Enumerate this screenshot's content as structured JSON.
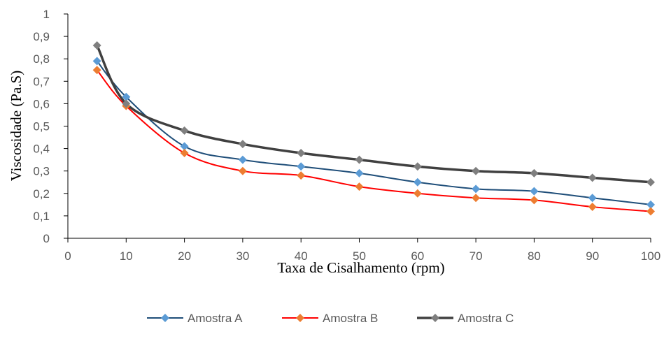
{
  "chart_data": {
    "type": "line",
    "title": "",
    "xlabel": "Taxa de Cisalhamento (rpm)",
    "ylabel": "Viscosidade (Pa.S)",
    "xlim": [
      0,
      100
    ],
    "ylim": [
      0,
      1
    ],
    "x_ticks": [
      "0",
      "10",
      "20",
      "30",
      "40",
      "50",
      "60",
      "70",
      "80",
      "90",
      "100"
    ],
    "y_ticks": [
      "0",
      "0,1",
      "0,2",
      "0,3",
      "0,4",
      "0,5",
      "0,6",
      "0,7",
      "0,8",
      "0,9",
      "1"
    ],
    "grid": false,
    "legend_position": "bottom",
    "x": [
      5,
      10,
      20,
      30,
      40,
      50,
      60,
      70,
      80,
      90,
      100
    ],
    "series": [
      {
        "name": "Amostra A",
        "values": [
          0.79,
          0.63,
          0.41,
          0.35,
          0.32,
          0.29,
          0.25,
          0.22,
          0.21,
          0.18,
          0.15
        ],
        "line_color": "#1F4E79",
        "marker_color": "#5B9BD5"
      },
      {
        "name": "Amostra B",
        "values": [
          0.75,
          0.59,
          0.38,
          0.3,
          0.28,
          0.23,
          0.2,
          0.18,
          0.17,
          0.14,
          0.12
        ],
        "line_color": "#FF0000",
        "marker_color": "#ED7D31"
      },
      {
        "name": "Amostra C",
        "values": [
          0.86,
          0.6,
          0.48,
          0.42,
          0.38,
          0.35,
          0.32,
          0.3,
          0.29,
          0.27,
          0.25
        ],
        "line_color": "#404040",
        "marker_color": "#7F7F7F"
      }
    ]
  }
}
